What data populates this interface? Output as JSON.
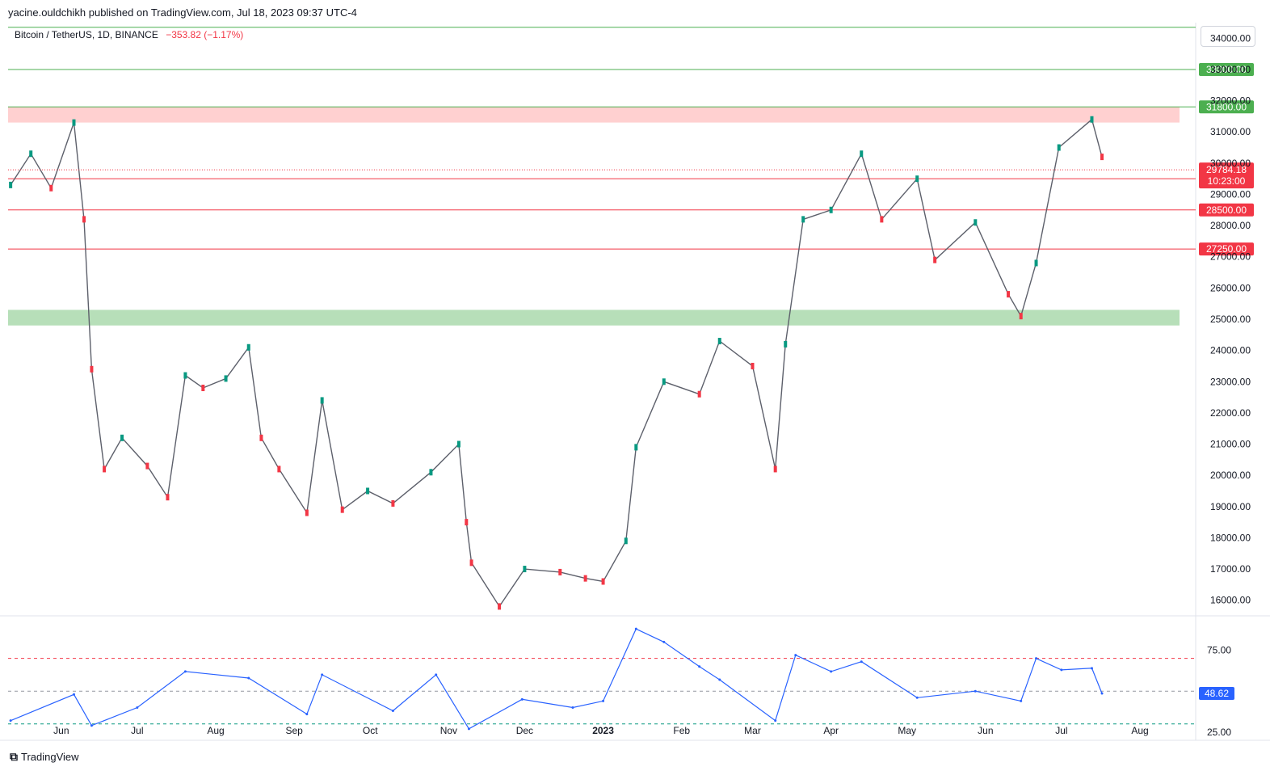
{
  "publisher": "yacine.ouldchikh published on TradingView.com, Jul 18, 2023 09:37 UTC-4",
  "symbol": {
    "title": "Bitcoin / TetherUS, 1D, BINANCE",
    "change": "−353.82 (−1.17%)"
  },
  "footer": {
    "brand": "TradingView"
  },
  "colors": {
    "up": "#089981",
    "down": "#f23645",
    "ema_short": "#22b8cf",
    "ema_mid": "#f0544f",
    "ema_long": "#f7c353",
    "rsi": "#2962ff",
    "support_zone": "#4caf50",
    "resistance_zone": "#ff8a8a"
  },
  "chart_data": [
    {
      "type": "line",
      "name_hint": "price",
      "ylim": [
        15500,
        34500
      ],
      "y_ticks": [
        16000,
        17000,
        18000,
        19000,
        20000,
        21000,
        22000,
        23000,
        24000,
        25000,
        26000,
        27000,
        28000,
        29000,
        30000,
        31000,
        32000,
        33000,
        34000
      ],
      "y_tick_labels": [
        "16000.00",
        "17000.00",
        "18000.00",
        "19000.00",
        "20000.00",
        "21000.00",
        "22000.00",
        "23000.00",
        "24000.00",
        "25000.00",
        "26000.00",
        "27000.00",
        "28000.00",
        "29000.00",
        "30000.00",
        "31000.00",
        "32000.00",
        "33000.00",
        "34000.00"
      ],
      "x_ticks": [
        {
          "date": "2022-06-01",
          "label": "Jun"
        },
        {
          "date": "2022-07-01",
          "label": "Jul"
        },
        {
          "date": "2022-08-01",
          "label": "Aug"
        },
        {
          "date": "2022-09-01",
          "label": "Sep"
        },
        {
          "date": "2022-10-01",
          "label": "Oct"
        },
        {
          "date": "2022-11-01",
          "label": "Nov"
        },
        {
          "date": "2022-12-01",
          "label": "Dec"
        },
        {
          "date": "2023-01-01",
          "label": "2023"
        },
        {
          "date": "2023-02-01",
          "label": "Feb"
        },
        {
          "date": "2023-03-01",
          "label": "Mar"
        },
        {
          "date": "2023-04-01",
          "label": "Apr"
        },
        {
          "date": "2023-05-01",
          "label": "May"
        },
        {
          "date": "2023-06-01",
          "label": "Jun"
        },
        {
          "date": "2023-07-01",
          "label": "Jul"
        },
        {
          "date": "2023-08-01",
          "label": "Aug"
        }
      ],
      "x": [
        "2022-05-12",
        "2022-05-20",
        "2022-05-28",
        "2022-06-06",
        "2022-06-10",
        "2022-06-13",
        "2022-06-18",
        "2022-06-25",
        "2022-07-05",
        "2022-07-13",
        "2022-07-20",
        "2022-07-27",
        "2022-08-05",
        "2022-08-14",
        "2022-08-19",
        "2022-08-26",
        "2022-09-06",
        "2022-09-12",
        "2022-09-20",
        "2022-09-30",
        "2022-10-10",
        "2022-10-25",
        "2022-11-05",
        "2022-11-08",
        "2022-11-10",
        "2022-11-21",
        "2022-12-01",
        "2022-12-15",
        "2022-12-25",
        "2023-01-01",
        "2023-01-10",
        "2023-01-14",
        "2023-01-25",
        "2023-02-08",
        "2023-02-16",
        "2023-03-01",
        "2023-03-10",
        "2023-03-14",
        "2023-03-21",
        "2023-04-01",
        "2023-04-13",
        "2023-04-21",
        "2023-05-05",
        "2023-05-12",
        "2023-05-28",
        "2023-06-10",
        "2023-06-15",
        "2023-06-21",
        "2023-06-30",
        "2023-07-13",
        "2023-07-17"
      ],
      "series": [
        {
          "values": [
            29300,
            30300,
            29200,
            31300,
            28200,
            23400,
            20200,
            21200,
            20300,
            19300,
            23200,
            22800,
            23100,
            24100,
            21200,
            20200,
            18800,
            22400,
            18900,
            19500,
            19100,
            20100,
            21000,
            18500,
            17200,
            15800,
            17000,
            16900,
            16700,
            16600,
            17900,
            20900,
            23000,
            22600,
            24300,
            23500,
            20200,
            24200,
            28200,
            28500,
            30300,
            28200,
            29500,
            26900,
            28100,
            25800,
            25100,
            26800,
            30500,
            31400,
            30200
          ]
        }
      ],
      "last_price": "29784.18",
      "countdown": "10:23:00",
      "levels": [
        {
          "value": 34350,
          "label": "",
          "color": "#4caf50"
        },
        {
          "value": 33000,
          "label": "33000.00",
          "color": "#4caf50"
        },
        {
          "value": 31800,
          "label": "31800.00",
          "color": "#4caf50"
        },
        {
          "value": 29500,
          "label": "29500.00",
          "color": "#f23645"
        },
        {
          "value": 28500,
          "label": "28500.00",
          "color": "#f23645"
        },
        {
          "value": 27250,
          "label": "27250.00",
          "color": "#f23645"
        }
      ],
      "zones": [
        {
          "from": 31300,
          "to": 31800,
          "color": "#ff8a8a"
        },
        {
          "from": 24800,
          "to": 25300,
          "color": "#4caf50"
        }
      ]
    },
    {
      "type": "line",
      "name_hint": "rsi",
      "ylim": [
        20,
        95
      ],
      "y_ticks": [
        25,
        75
      ],
      "y_tick_labels": [
        "25.00",
        "75.00"
      ],
      "levels": [
        70,
        50,
        30
      ],
      "x": [
        "2022-05-12",
        "2022-06-06",
        "2022-06-13",
        "2022-07-01",
        "2022-07-20",
        "2022-08-14",
        "2022-09-06",
        "2022-09-12",
        "2022-10-10",
        "2022-10-27",
        "2022-11-09",
        "2022-11-30",
        "2022-12-20",
        "2023-01-01",
        "2023-01-14",
        "2023-01-25",
        "2023-02-08",
        "2023-02-16",
        "2023-03-10",
        "2023-03-18",
        "2023-04-01",
        "2023-04-13",
        "2023-05-05",
        "2023-05-28",
        "2023-06-15",
        "2023-06-21",
        "2023-07-01",
        "2023-07-13",
        "2023-07-17"
      ],
      "series": [
        {
          "values": [
            32,
            48,
            29,
            40,
            62,
            58,
            36,
            60,
            38,
            60,
            27,
            45,
            40,
            44,
            88,
            80,
            65,
            57,
            32,
            72,
            62,
            68,
            46,
            50,
            44,
            70,
            63,
            64,
            48.62
          ]
        }
      ],
      "last_value": "48.62"
    }
  ]
}
